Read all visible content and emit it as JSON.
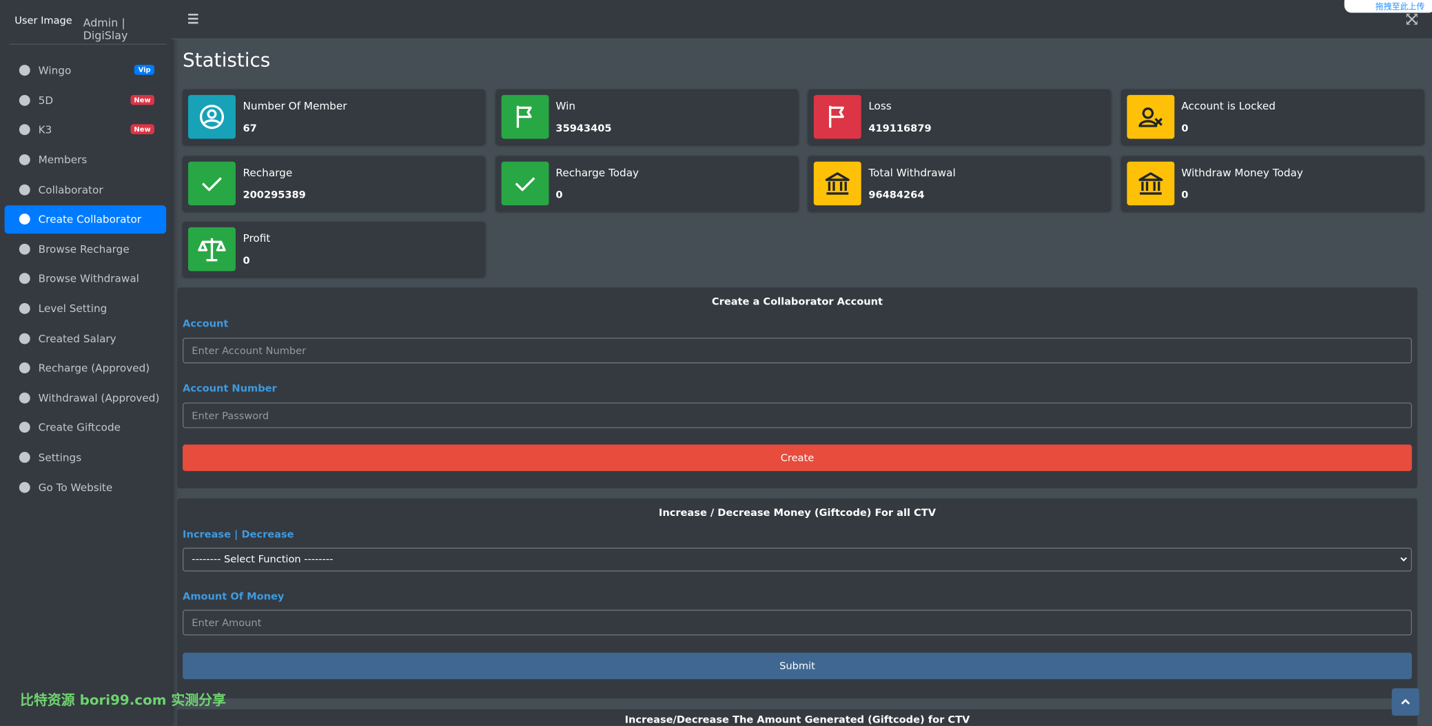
{
  "sidebar": {
    "brand_image_alt": "User Image",
    "brand_text": "Admin | DigiSlay",
    "menu": [
      {
        "label": "Wingo",
        "badge": "Vip"
      },
      {
        "label": "5D",
        "badge": "New"
      },
      {
        "label": "K3",
        "badge": "New"
      },
      {
        "label": "Members"
      },
      {
        "label": "Collaborator"
      },
      {
        "label": "Create Collaborator"
      },
      {
        "label": "Browse Recharge"
      },
      {
        "label": "Browse Withdrawal"
      },
      {
        "label": "Level Setting"
      },
      {
        "label": "Created Salary"
      },
      {
        "label": "Recharge (Approved)"
      },
      {
        "label": "Withdrawal (Approved)"
      },
      {
        "label": "Create Giftcode"
      },
      {
        "label": "Settings"
      },
      {
        "label": "Go To Website"
      }
    ]
  },
  "page_title": "Statistics",
  "stats": [
    {
      "label": "Number Of Member",
      "value": "67"
    },
    {
      "label": "Win",
      "value": "35943405"
    },
    {
      "label": "Loss",
      "value": "419116879"
    },
    {
      "label": "Account is Locked",
      "value": "0"
    },
    {
      "label": "Recharge",
      "value": "200295389"
    },
    {
      "label": "Recharge Today",
      "value": "0"
    },
    {
      "label": "Total Withdrawal",
      "value": "96484264"
    },
    {
      "label": "Withdraw Money Today",
      "value": "0"
    },
    {
      "label": "Profit",
      "value": "0"
    }
  ],
  "create_form": {
    "title": "Create a Collaborator Account",
    "account_label": "Account",
    "account_placeholder": "Enter Account Number",
    "password_label": "Account Number",
    "password_placeholder": "Enter Password",
    "button": "Create"
  },
  "money_form": {
    "title": "Increase / Decrease Money (Giftcode) For all CTV",
    "function_label": "Increase | Decrease",
    "function_select": "-------- Select Function --------",
    "amount_label": "Amount Of Money",
    "amount_placeholder": "Enter Amount",
    "button": "Submit"
  },
  "third_form": {
    "title": "Increase/Decrease The Amount Generated (Giftcode) for CTV"
  },
  "watermark": "比特资源 bori99.com 实测分享",
  "upload_hint": "拖拽至此上传"
}
